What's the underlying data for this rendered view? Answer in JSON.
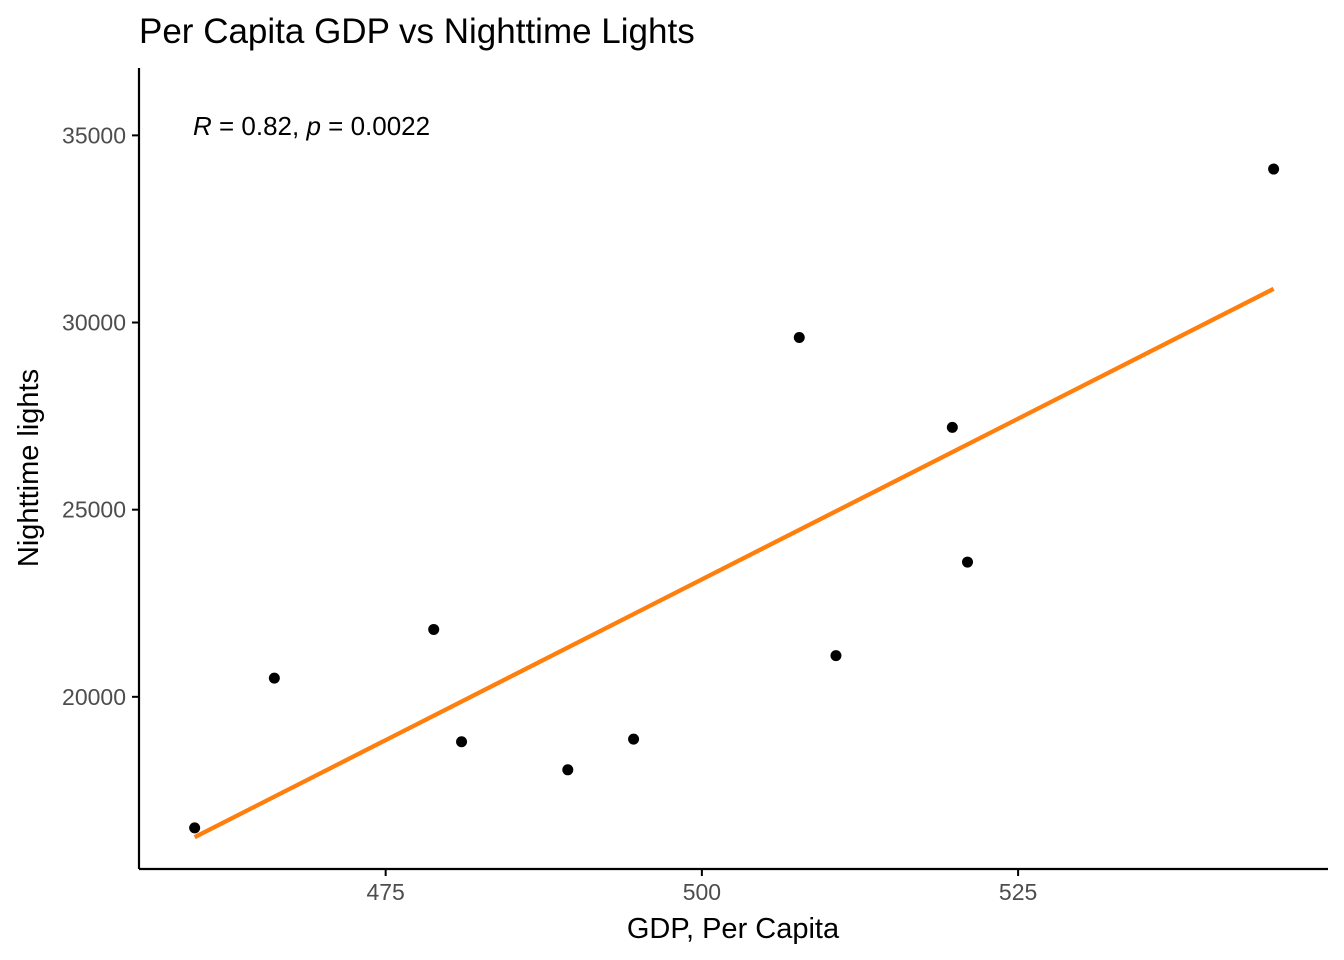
{
  "chart_data": {
    "type": "scatter",
    "title": "Per Capita GDP vs Nighttime Lights",
    "xlabel": "GDP, Per Capita",
    "ylabel": "Nighttime lights",
    "xlim": [
      455.5,
      549.5
    ],
    "ylim": [
      15400,
      36800
    ],
    "x_ticks": [
      475,
      500,
      525
    ],
    "x_tick_labels": [
      "475",
      "500",
      "525"
    ],
    "y_ticks": [
      20000,
      25000,
      30000,
      35000
    ],
    "y_tick_labels": [
      "20000",
      "25000",
      "30000",
      "35000"
    ],
    "grid": false,
    "legend": "none",
    "points": [
      {
        "x": 459.9,
        "y": 16500
      },
      {
        "x": 466.2,
        "y": 20500
      },
      {
        "x": 478.8,
        "y": 21800
      },
      {
        "x": 481.0,
        "y": 18800
      },
      {
        "x": 489.4,
        "y": 18050
      },
      {
        "x": 494.6,
        "y": 18870
      },
      {
        "x": 507.7,
        "y": 29600
      },
      {
        "x": 510.6,
        "y": 21100
      },
      {
        "x": 519.8,
        "y": 27200
      },
      {
        "x": 521.0,
        "y": 23600
      },
      {
        "x": 545.2,
        "y": 34100
      }
    ],
    "fit_line": {
      "x": [
        459.9,
        545.2
      ],
      "y": [
        16250,
        30900
      ]
    },
    "annotation": {
      "r_label": "R",
      "r_value": " = 0.82, ",
      "p_label": "p",
      "p_value": " = 0.0022"
    },
    "colors": {
      "points": "#000000",
      "fit_line": "#ff7f0e",
      "axis": "#000000",
      "tick_label": "#4d4d4d"
    }
  }
}
